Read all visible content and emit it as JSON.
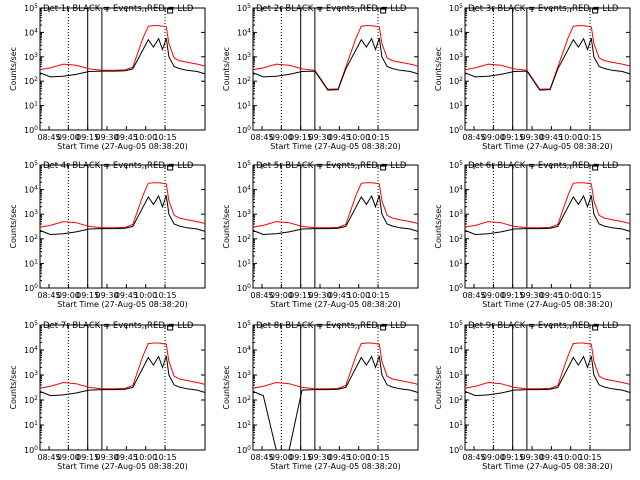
{
  "figure": {
    "xlabel": "Start Time (27-Aug-05 08:38:20)",
    "ylabel": "Counts/sec",
    "x_tick_labels": [
      "08:45",
      "09:00",
      "09:15",
      "09:30",
      "09:45",
      "10:00",
      "10:15"
    ],
    "y_tick_exponents": [
      "0",
      "1",
      "2",
      "3",
      "4",
      "5"
    ],
    "colors": {
      "events": "#000000",
      "lld": "#ff0000",
      "background": "#ffffff"
    },
    "legend_text": "BLACK = Events, RED = LLD"
  },
  "chart_data": [
    {
      "title": "Det 1r BLACK = Events, RED = LLD",
      "type": "line",
      "yscale": "log",
      "ylim": [
        1,
        100000
      ],
      "x": [
        "08:45",
        "09:00",
        "09:15",
        "09:30",
        "09:45",
        "10:00",
        "10:15"
      ],
      "series_names_from_title": true
    },
    {
      "title": "Det 2r BLACK = Events, RED = LLD",
      "type": "line",
      "yscale": "log",
      "ylim": [
        1,
        100000
      ],
      "x": [
        "08:45",
        "09:00",
        "09:15",
        "09:30",
        "09:45",
        "10:00",
        "10:15"
      ],
      "dip": true
    },
    {
      "title": "Det 3r BLACK = Events, RED = LLD",
      "type": "line",
      "yscale": "log",
      "ylim": [
        1,
        100000
      ],
      "x": [
        "08:45",
        "09:00",
        "09:15",
        "09:30",
        "09:45",
        "10:00",
        "10:15"
      ],
      "dip": true
    },
    {
      "title": "Det 4r BLACK = Events, RED = LLD",
      "type": "line",
      "yscale": "log",
      "ylim": [
        1,
        100000
      ],
      "x": [
        "08:45",
        "09:00",
        "09:15",
        "09:30",
        "09:45",
        "10:00",
        "10:15"
      ]
    },
    {
      "title": "Det 5r BLACK = Events, RED = LLD",
      "type": "line",
      "yscale": "log",
      "ylim": [
        1,
        100000
      ],
      "x": [
        "08:45",
        "09:00",
        "09:15",
        "09:30",
        "09:45",
        "10:00",
        "10:15"
      ]
    },
    {
      "title": "Det 6r BLACK = Events, RED = LLD",
      "type": "line",
      "yscale": "log",
      "ylim": [
        1,
        100000
      ],
      "x": [
        "08:45",
        "09:00",
        "09:15",
        "09:30",
        "09:45",
        "10:00",
        "10:15"
      ]
    },
    {
      "title": "Det 7r BLACK = Events, RED = LLD",
      "type": "line",
      "yscale": "log",
      "ylim": [
        1,
        100000
      ],
      "x": [
        "08:45",
        "09:00",
        "09:15",
        "09:30",
        "09:45",
        "10:00",
        "10:15"
      ]
    },
    {
      "title": "Det 8r BLACK = Events, RED = LLD",
      "type": "line",
      "yscale": "log",
      "ylim": [
        1,
        100000
      ],
      "x": [
        "08:45",
        "09:00",
        "09:15",
        "09:30",
        "09:45",
        "10:00",
        "10:15"
      ],
      "drop": true
    },
    {
      "title": "Det 9r BLACK = Events, RED = LLD",
      "type": "line",
      "yscale": "log",
      "ylim": [
        1,
        100000
      ],
      "x": [
        "08:45",
        "09:00",
        "09:15",
        "09:30",
        "09:45",
        "10:00",
        "10:15"
      ]
    }
  ],
  "series_profile": {
    "time_minutes_from_0838": [
      0,
      8,
      18,
      28,
      38,
      48,
      58,
      66,
      72,
      80,
      84,
      88,
      92,
      95,
      98,
      100,
      104,
      108,
      114,
      122,
      128
    ],
    "events_counts": [
      220,
      150,
      160,
      190,
      250,
      260,
      260,
      270,
      320,
      2000,
      5000,
      2500,
      5500,
      2000,
      5800,
      1000,
      400,
      330,
      280,
      250,
      200
    ],
    "lld_counts": [
      300,
      350,
      500,
      450,
      320,
      280,
      280,
      290,
      380,
      6000,
      18000,
      19000,
      19000,
      18000,
      17000,
      3500,
      900,
      700,
      600,
      500,
      420
    ]
  }
}
